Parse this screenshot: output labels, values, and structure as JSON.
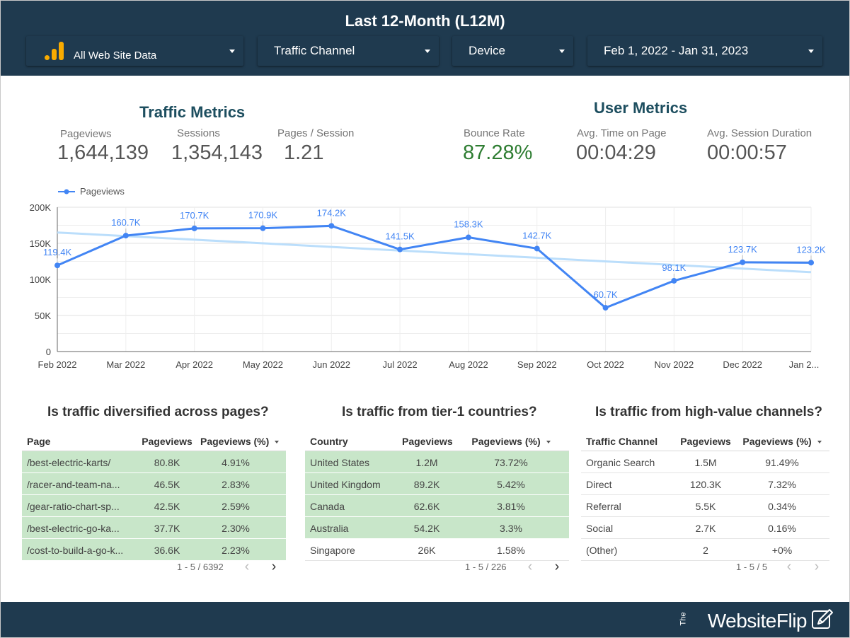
{
  "header": {
    "title": "Last 12-Month (L12M)",
    "filters": {
      "data_source": "All Web Site Data",
      "channel": "Traffic Channel",
      "device": "Device",
      "date_range": "Feb 1, 2022 - Jan 31, 2023"
    }
  },
  "traffic_metrics": {
    "title": "Traffic Metrics",
    "pageviews_label": "Pageviews",
    "pageviews_value": "1,644,139",
    "sessions_label": "Sessions",
    "sessions_value": "1,354,143",
    "pps_label": "Pages / Session",
    "pps_value": "1.21"
  },
  "user_metrics": {
    "title": "User Metrics",
    "bounce_label": "Bounce Rate",
    "bounce_value": "87.28%",
    "time_label": "Avg. Time on Page",
    "time_value": "00:04:29",
    "duration_label": "Avg. Session Duration",
    "duration_value": "00:00:57"
  },
  "colors": {
    "header_bg": "#1f3a4f",
    "line": "#4285f4",
    "trend": "#bbdefb",
    "highlight": "#c8e6c9",
    "bounce": "#2e7d32"
  },
  "chart_data": {
    "type": "line",
    "legend": "Pageviews",
    "legend_position": "top-left",
    "categories": [
      "Feb 2022",
      "Mar 2022",
      "Apr 2022",
      "May 2022",
      "Jun 2022",
      "Jul 2022",
      "Aug 2022",
      "Sep 2022",
      "Oct 2022",
      "Nov 2022",
      "Dec 2022",
      "Jan 2..."
    ],
    "series": [
      {
        "name": "Pageviews",
        "values": [
          119400,
          160700,
          170700,
          170900,
          174200,
          141500,
          158300,
          142700,
          60700,
          98100,
          123700,
          123200
        ],
        "labels": [
          "119.4K",
          "160.7K",
          "170.7K",
          "170.9K",
          "174.2K",
          "141.5K",
          "158.3K",
          "142.7K",
          "60.7K",
          "98.1K",
          "123.7K",
          "123.2K"
        ]
      }
    ],
    "trendline": [
      165000,
      110000
    ],
    "ylim": [
      0,
      200000
    ],
    "yticks": [
      0,
      50000,
      100000,
      150000,
      200000
    ],
    "ytick_labels": [
      "0",
      "50K",
      "100K",
      "150K",
      "200K"
    ],
    "grid": true
  },
  "tables": [
    {
      "title": "Is traffic diversified across pages?",
      "headers": [
        "Page",
        "Pageviews",
        "Pageviews (%)"
      ],
      "rows": [
        [
          "/best-electric-karts/",
          "80.8K",
          "4.91%"
        ],
        [
          "/racer-and-team-na...",
          "46.5K",
          "2.83%"
        ],
        [
          "/gear-ratio-chart-sp...",
          "42.5K",
          "2.59%"
        ],
        [
          "/best-electric-go-ka...",
          "37.7K",
          "2.30%"
        ],
        [
          "/cost-to-build-a-go-k...",
          "36.6K",
          "2.23%"
        ]
      ],
      "highlighted": [
        true,
        true,
        true,
        true,
        true
      ],
      "pager": "1 - 5 / 6392"
    },
    {
      "title": "Is traffic from tier-1 countries?",
      "headers": [
        "Country",
        "Pageviews",
        "Pageviews (%)"
      ],
      "rows": [
        [
          "United States",
          "1.2M",
          "73.72%"
        ],
        [
          "United Kingdom",
          "89.2K",
          "5.42%"
        ],
        [
          "Canada",
          "62.6K",
          "3.81%"
        ],
        [
          "Australia",
          "54.2K",
          "3.3%"
        ],
        [
          "Singapore",
          "26K",
          "1.58%"
        ]
      ],
      "highlighted": [
        true,
        true,
        true,
        true,
        false
      ],
      "pager": "1 - 5 / 226"
    },
    {
      "title": "Is traffic from high-value channels?",
      "headers": [
        "Traffic Channel",
        "Pageviews",
        "Pageviews (%)"
      ],
      "rows": [
        [
          "Organic Search",
          "1.5M",
          "91.49%"
        ],
        [
          "Direct",
          "120.3K",
          "7.32%"
        ],
        [
          "Referral",
          "5.5K",
          "0.34%"
        ],
        [
          "Social",
          "2.7K",
          "0.16%"
        ],
        [
          "(Other)",
          "2",
          "+0%"
        ]
      ],
      "highlighted": [
        false,
        false,
        false,
        false,
        false
      ],
      "pager": "1 - 5 / 5"
    }
  ],
  "footer": {
    "brand_prefix": "The",
    "brand_name": "WebsiteFlip"
  }
}
